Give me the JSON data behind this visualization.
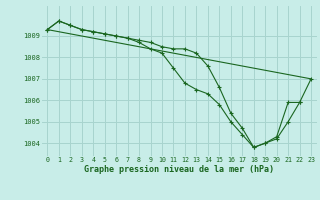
{
  "title": "Graphe pression niveau de la mer (hPa)",
  "bg_color": "#c8ede8",
  "grid_color": "#a8d4ce",
  "line_color": "#1a6620",
  "xlim": [
    -0.5,
    23.5
  ],
  "ylim": [
    1003.4,
    1010.4
  ],
  "yticks": [
    1004,
    1005,
    1006,
    1007,
    1008,
    1009
  ],
  "xticks": [
    0,
    1,
    2,
    3,
    4,
    5,
    6,
    7,
    8,
    9,
    10,
    11,
    12,
    13,
    14,
    15,
    16,
    17,
    18,
    19,
    20,
    21,
    22,
    23
  ],
  "series1_x": [
    0,
    1,
    2,
    3,
    4,
    5,
    6,
    7,
    8,
    9,
    10,
    11,
    12,
    13,
    14,
    15,
    16,
    17,
    18,
    19,
    20,
    21,
    22,
    23
  ],
  "series1_y": [
    1009.3,
    1009.7,
    1009.5,
    1009.3,
    1009.2,
    1009.1,
    1009.0,
    1008.9,
    1008.8,
    1008.7,
    1008.5,
    1008.4,
    1008.4,
    1008.2,
    1007.6,
    1006.6,
    1005.4,
    1004.7,
    1003.8,
    1004.0,
    1004.2,
    1005.0,
    1005.9,
    1007.0
  ],
  "series2_x": [
    0,
    1,
    2,
    3,
    4,
    5,
    6,
    7,
    8,
    9,
    10,
    11,
    12,
    13,
    14,
    15,
    16,
    17,
    18,
    19,
    20,
    21,
    22
  ],
  "series2_y": [
    1009.3,
    1009.7,
    1009.5,
    1009.3,
    1009.2,
    1009.1,
    1009.0,
    1008.9,
    1008.7,
    1008.4,
    1008.2,
    1007.5,
    1006.8,
    1006.5,
    1006.3,
    1005.8,
    1005.0,
    1004.4,
    1003.8,
    1004.0,
    1004.3,
    1005.9,
    1005.9
  ],
  "series3_x": [
    0,
    23
  ],
  "series3_y": [
    1009.3,
    1007.0
  ]
}
